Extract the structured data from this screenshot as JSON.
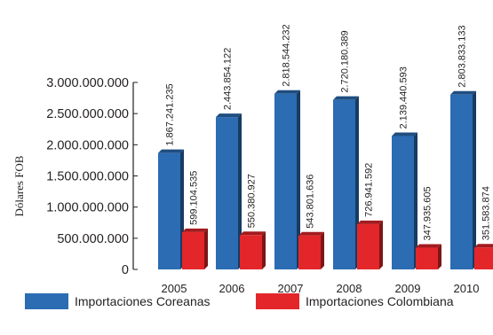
{
  "chart_data": {
    "type": "bar",
    "title": "",
    "xlabel": "",
    "ylabel": "Dólares FOB",
    "categories": [
      "2005",
      "2006",
      "2007",
      "2008",
      "2009",
      "2010"
    ],
    "series": [
      {
        "name": "Importaciones Coreanas",
        "color": "#2b6cb3",
        "values": [
          1867241235,
          2443854122,
          2818544232,
          2720180389,
          2139440593,
          2803833133
        ],
        "labels": [
          "1.867.241.235",
          "2.443.854.122",
          "2.818.544.232",
          "2.720.180.389",
          "2.139.440.593",
          "2.803.833.133"
        ]
      },
      {
        "name": "Importaciones Colombiana",
        "color": "#e3262a",
        "values": [
          599104535,
          550380927,
          543801636,
          726941592,
          347935605,
          351583874
        ],
        "labels": [
          "599.104.535",
          "550.380.927",
          "543.801.636",
          "726.941.592",
          "347.935.605",
          "351.583.874"
        ]
      }
    ],
    "ylim": [
      0,
      3000000000
    ],
    "yticks": [
      0,
      500000000,
      1000000000,
      1500000000,
      2000000000,
      2500000000,
      3000000000
    ],
    "ytick_labels": [
      "0",
      "500.000.000",
      "1.000.000.000",
      "1.500.000.000",
      "2.000.000.000",
      "2.500.000.000",
      "3.000.000.000"
    ],
    "grid": false,
    "legend_position": "bottom"
  }
}
